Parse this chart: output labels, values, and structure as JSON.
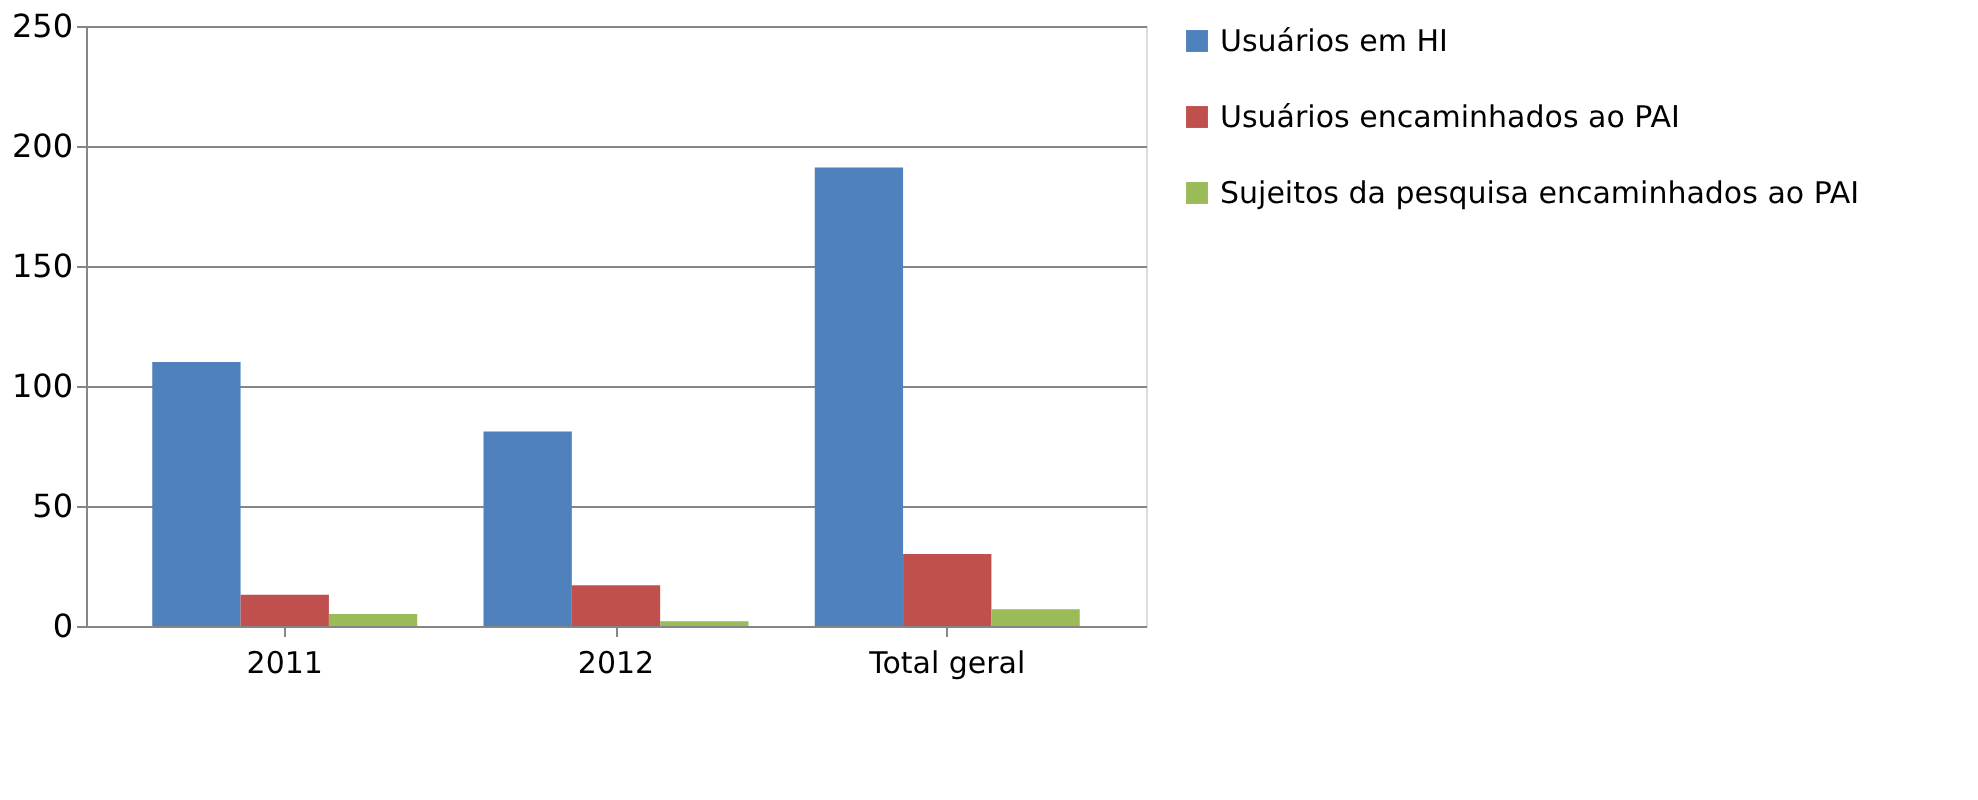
{
  "chart_data": {
    "type": "bar",
    "categories": [
      "2011",
      "2012",
      "Total geral"
    ],
    "series": [
      {
        "name": "Usuários em HI",
        "color": "#4f81bd",
        "values": [
          110,
          81,
          191
        ]
      },
      {
        "name": "Usuários encaminhados ao PAI",
        "color": "#c0504d",
        "values": [
          13,
          17,
          30
        ]
      },
      {
        "name": "Sujeitos da pesquisa encaminhados ao PAI",
        "color": "#9bbb59",
        "values": [
          5,
          2,
          7
        ]
      }
    ],
    "ylim": [
      0,
      250
    ],
    "yticks": [
      0,
      50,
      100,
      150,
      200,
      250
    ],
    "grid": "y",
    "legend": "right"
  }
}
